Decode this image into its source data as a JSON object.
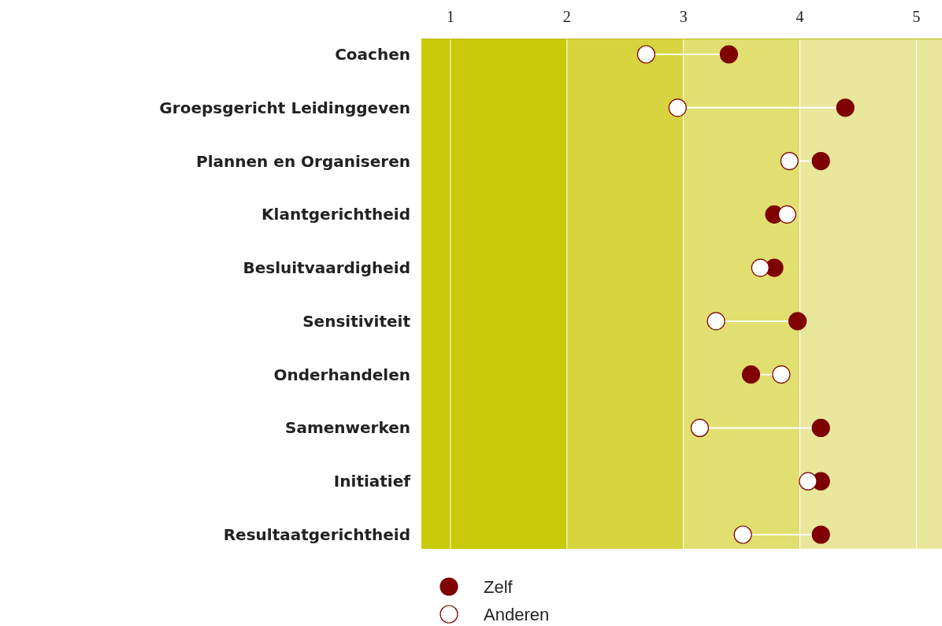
{
  "chart_data": {
    "type": "scatter",
    "orientation": "horizontal",
    "categories": [
      "Coachen",
      "Groepsgericht Leidinggeven",
      "Plannen en Organiseren",
      "Klantgerichtheid",
      "Besluitvaardigheid",
      "Sensitiviteit",
      "Onderhandelen",
      "Samenwerken",
      "Initiatief",
      "Resultaatgerichtheid"
    ],
    "series": [
      {
        "name": "Zelf",
        "color": "#7f0000",
        "values": [
          3.39,
          4.39,
          4.18,
          3.78,
          3.78,
          3.98,
          3.58,
          4.18,
          4.18,
          4.18
        ]
      },
      {
        "name": "Anderen",
        "color": "#ffffff",
        "values": [
          2.68,
          2.95,
          3.91,
          3.89,
          3.66,
          3.28,
          3.84,
          3.14,
          4.07,
          3.51
        ]
      }
    ],
    "xlim": [
      0.75,
      5.22
    ],
    "xticks": [
      1,
      2,
      3,
      4,
      5
    ],
    "grid": "x",
    "legend": "bottom",
    "marker": "circle",
    "bands": [
      {
        "axis": "x",
        "from": 0.75,
        "to": 2,
        "color": "#c9ca0a"
      },
      {
        "axis": "x",
        "from": 2,
        "to": 3,
        "color": "#d7d43f"
      },
      {
        "axis": "x",
        "from": 3,
        "to": 4,
        "color": "#e1df70"
      },
      {
        "axis": "x",
        "from": 4,
        "to": 5.22,
        "color": "#e8e79c"
      }
    ]
  }
}
